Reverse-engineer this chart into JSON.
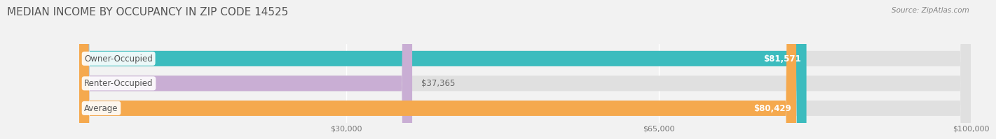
{
  "title": "MEDIAN INCOME BY OCCUPANCY IN ZIP CODE 14525",
  "source": "Source: ZipAtlas.com",
  "categories": [
    "Owner-Occupied",
    "Renter-Occupied",
    "Average"
  ],
  "values": [
    81571,
    37365,
    80429
  ],
  "bar_colors": [
    "#3cbcbe",
    "#c9aed4",
    "#f5a94e"
  ],
  "background_color": "#f2f2f2",
  "bar_bg_color": "#e0e0e0",
  "xlim": [
    0,
    100000
  ],
  "xticks": [
    30000,
    65000,
    100000
  ],
  "xtick_labels": [
    "$30,000",
    "$65,000",
    "$100,000"
  ],
  "title_fontsize": 11,
  "label_fontsize": 8.5,
  "value_fontsize": 8.5,
  "bar_height": 0.62,
  "fig_width": 14.06,
  "fig_height": 1.96
}
